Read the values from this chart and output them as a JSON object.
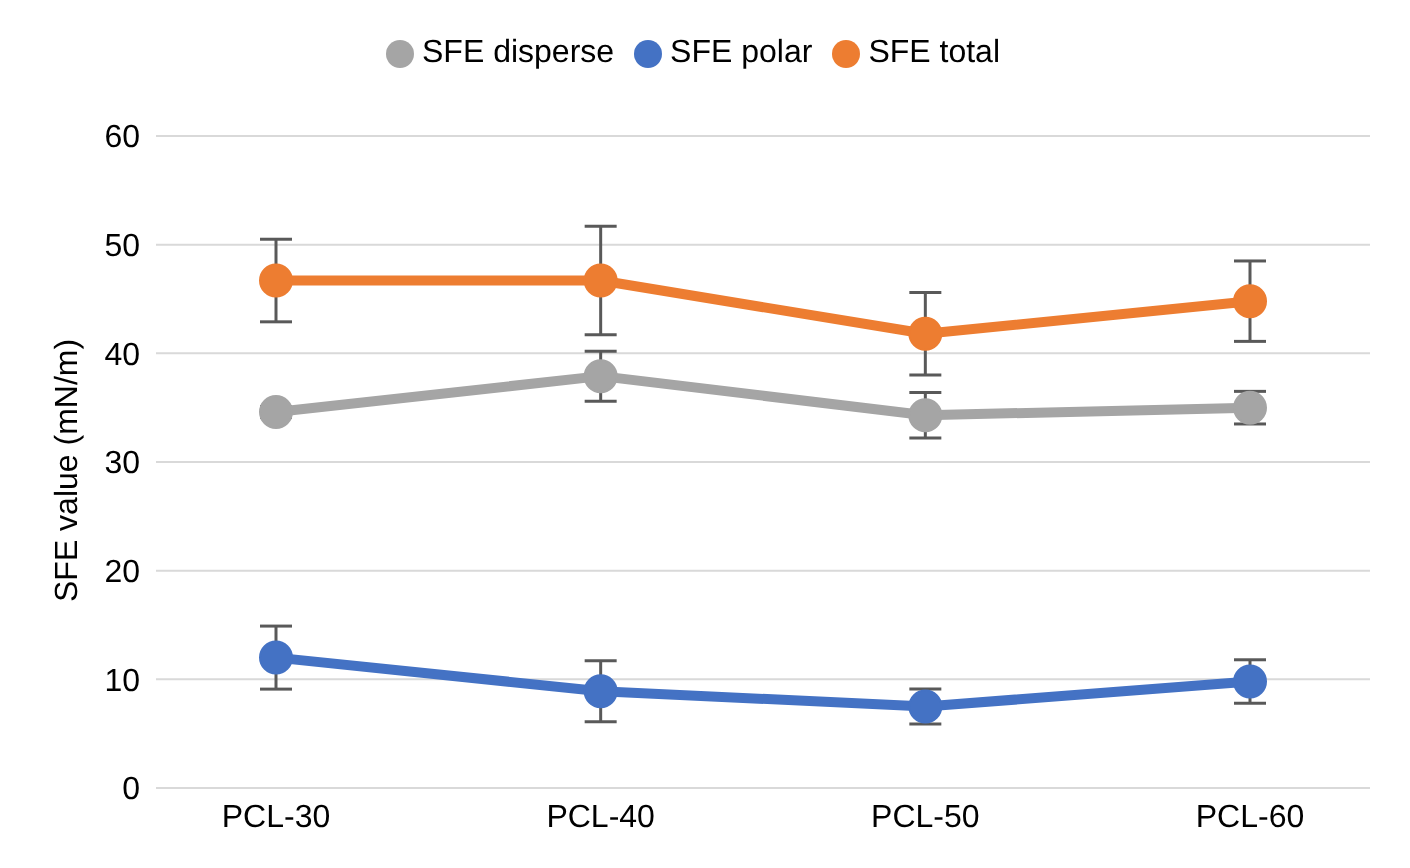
{
  "chart_data": {
    "type": "line",
    "ylabel": "SFE value (mN/m)",
    "categories": [
      "PCL-30",
      "PCL-40",
      "PCL-50",
      "PCL-60"
    ],
    "series": [
      {
        "name": "SFE polar",
        "color": "#4472c4",
        "values": [
          12.0,
          8.9,
          7.5,
          9.8
        ],
        "errors": [
          2.9,
          2.8,
          1.6,
          2.0
        ]
      },
      {
        "name": "SFE total",
        "color": "#ed7d31",
        "values": [
          46.7,
          46.7,
          41.8,
          44.8
        ],
        "errors": [
          3.8,
          5.0,
          3.8,
          3.7
        ]
      },
      {
        "name": "SFE disperse",
        "color": "#a5a5a5",
        "values": [
          34.6,
          37.9,
          34.3,
          35.0
        ],
        "errors": [
          0.5,
          2.3,
          2.1,
          1.5
        ]
      }
    ],
    "ylim": [
      0,
      60
    ],
    "yticks": [
      0,
      10,
      20,
      30,
      40,
      50,
      60
    ],
    "grid": "y",
    "legend": "top",
    "marker": "circle",
    "line_style": "solid"
  }
}
